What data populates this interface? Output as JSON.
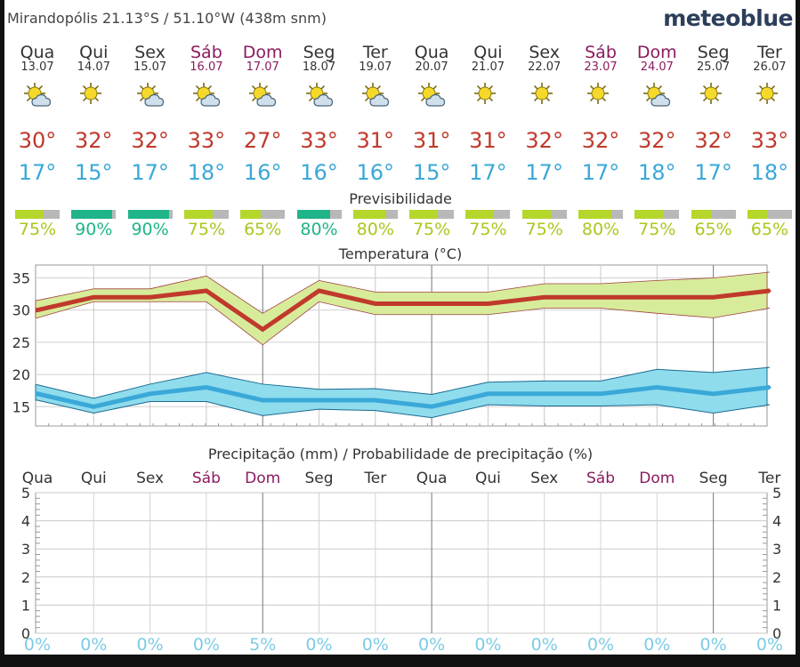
{
  "header": {
    "location": "Mirandopólis  21.13°S / 51.10°W (438m snm)",
    "brand": "meteoblue"
  },
  "days": [
    {
      "name": "Qua",
      "date": "13.07",
      "weekend": false,
      "icon": "sun-cloud-icon",
      "max": "30°",
      "min": "17°",
      "pred": 75,
      "pred_label": "75%"
    },
    {
      "name": "Qui",
      "date": "14.07",
      "weekend": false,
      "icon": "sun-icon",
      "max": "32°",
      "min": "15°",
      "pred": 90,
      "pred_label": "90%"
    },
    {
      "name": "Sex",
      "date": "15.07",
      "weekend": false,
      "icon": "sun-cloud-icon",
      "max": "32°",
      "min": "17°",
      "pred": 90,
      "pred_label": "90%"
    },
    {
      "name": "Sáb",
      "date": "16.07",
      "weekend": true,
      "icon": "sun-cloud-icon",
      "max": "33°",
      "min": "18°",
      "pred": 75,
      "pred_label": "75%"
    },
    {
      "name": "Dom",
      "date": "17.07",
      "weekend": true,
      "icon": "sun-cloud-icon",
      "max": "27°",
      "min": "16°",
      "pred": 65,
      "pred_label": "65%"
    },
    {
      "name": "Seg",
      "date": "18.07",
      "weekend": false,
      "icon": "sun-cloud-icon",
      "max": "33°",
      "min": "16°",
      "pred": 80,
      "pred_label": "80%"
    },
    {
      "name": "Ter",
      "date": "19.07",
      "weekend": false,
      "icon": "sun-cloud-icon",
      "max": "31°",
      "min": "16°",
      "pred": 80,
      "pred_label": "80%"
    },
    {
      "name": "Qua",
      "date": "20.07",
      "weekend": false,
      "icon": "sun-cloud-icon",
      "max": "31°",
      "min": "15°",
      "pred": 75,
      "pred_label": "75%"
    },
    {
      "name": "Qui",
      "date": "21.07",
      "weekend": false,
      "icon": "sun-icon",
      "max": "31°",
      "min": "17°",
      "pred": 75,
      "pred_label": "75%"
    },
    {
      "name": "Sex",
      "date": "22.07",
      "weekend": false,
      "icon": "sun-icon",
      "max": "32°",
      "min": "17°",
      "pred": 75,
      "pred_label": "75%"
    },
    {
      "name": "Sáb",
      "date": "23.07",
      "weekend": true,
      "icon": "sun-icon",
      "max": "32°",
      "min": "17°",
      "pred": 80,
      "pred_label": "80%"
    },
    {
      "name": "Dom",
      "date": "24.07",
      "weekend": true,
      "icon": "sun-cloud-icon",
      "max": "32°",
      "min": "18°",
      "pred": 75,
      "pred_label": "75%"
    },
    {
      "name": "Seg",
      "date": "25.07",
      "weekend": false,
      "icon": "sun-icon",
      "max": "32°",
      "min": "17°",
      "pred": 65,
      "pred_label": "65%"
    },
    {
      "name": "Ter",
      "date": "26.07",
      "weekend": false,
      "icon": "sun-icon",
      "max": "33°",
      "min": "18°",
      "pred": 65,
      "pred_label": "65%"
    }
  ],
  "sections": {
    "predictability": "Previsibilidade",
    "temperature": "Temperatura (°C)",
    "precip": "Precipitação (mm) / Probabilidade de precipitação (%)"
  },
  "colors": {
    "max": "#c0392b",
    "min": "#3aa8d8",
    "max_band": "#d7ec9a",
    "min_band": "#8fdced",
    "pred_high": "#1fb48a",
    "pred_mid": "#b5d62a",
    "weekend": "#8b1a5e"
  },
  "chart_data": [
    {
      "type": "line",
      "title": "Temperatura (°C)",
      "ylim": [
        12,
        37
      ],
      "yticks": [
        "15",
        "20",
        "25",
        "30",
        "35"
      ],
      "grid": true,
      "series": [
        {
          "values": [
            30,
            32,
            32,
            33,
            27,
            33,
            31,
            31,
            31,
            32,
            32,
            32,
            32,
            33
          ]
        },
        {
          "values": [
            17,
            15,
            17,
            18,
            16,
            16,
            16,
            15,
            17,
            17,
            17,
            18,
            17,
            18
          ]
        }
      ],
      "max_band_hi": [
        31.5,
        33.3,
        33.3,
        35.3,
        29.5,
        34.6,
        32.8,
        32.8,
        32.8,
        34.1,
        34.1,
        34.6,
        35.0,
        35.9
      ],
      "max_band_lo": [
        28.8,
        31.3,
        31.3,
        31.3,
        24.6,
        31.3,
        29.3,
        29.3,
        29.3,
        30.3,
        30.3,
        29.5,
        28.8,
        30.3
      ],
      "min_band_hi": [
        18.4,
        16.3,
        18.5,
        20.3,
        18.5,
        17.7,
        17.8,
        16.9,
        18.8,
        19.0,
        19.0,
        20.8,
        20.3,
        21.1
      ],
      "min_band_lo": [
        16.0,
        14.0,
        15.8,
        15.8,
        13.6,
        14.6,
        14.4,
        13.3,
        15.3,
        15.1,
        15.1,
        15.3,
        14.0,
        15.3
      ]
    },
    {
      "type": "bar",
      "title": "Precipitação (mm) / Probabilidade de precipitação (%)",
      "categories": [
        "Qua",
        "Qui",
        "Sex",
        "Sáb",
        "Dom",
        "Seg",
        "Ter",
        "Qua",
        "Qui",
        "Sex",
        "Sáb",
        "Dom",
        "Seg",
        "Ter"
      ],
      "ylim": [
        0,
        5
      ],
      "yticks": [
        "0",
        "1",
        "2",
        "3",
        "4",
        "5"
      ],
      "precip_mm": [
        0,
        0,
        0,
        0,
        0,
        0,
        0,
        0,
        0,
        0,
        0,
        0,
        0,
        0
      ],
      "probability": [
        "0%",
        "0%",
        "0%",
        "0%",
        "5%",
        "0%",
        "0%",
        "0%",
        "0%",
        "0%",
        "0%",
        "0%",
        "0%",
        "0%"
      ]
    }
  ]
}
